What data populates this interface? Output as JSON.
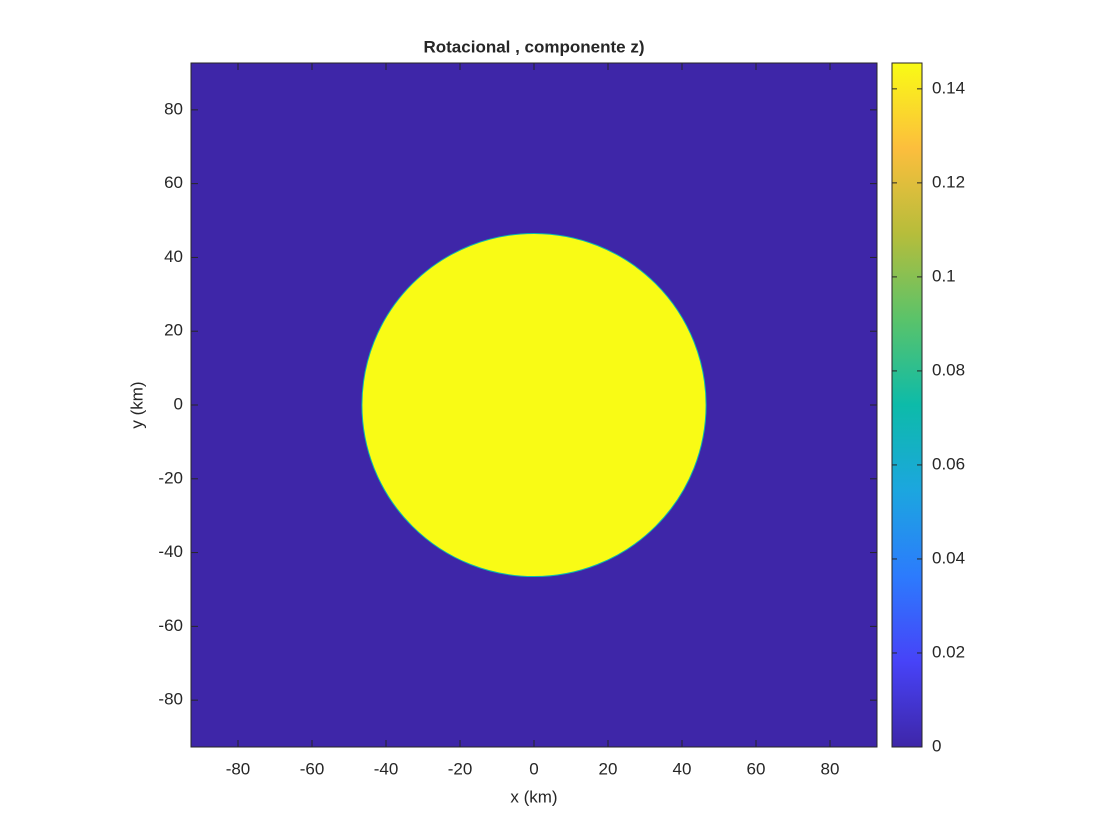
{
  "chart_data": {
    "type": "image",
    "title": "Rotacional , componente z)",
    "x_label": "x (km)",
    "y_label": "y (km)",
    "xlim": [
      -92.7,
      92.7
    ],
    "ylim": [
      -92.7,
      92.7
    ],
    "xticks": [
      -80,
      -60,
      -40,
      -20,
      0,
      20,
      40,
      60,
      80
    ],
    "yticks": [
      -80,
      -60,
      -40,
      -20,
      0,
      20,
      40,
      60,
      80
    ],
    "background_value": 0,
    "disc": {
      "center": [
        0,
        0
      ],
      "radius": 46.5,
      "value": 0.1455
    },
    "clim": [
      0,
      0.1455
    ],
    "cticks": [
      0,
      0.02,
      0.04,
      0.06,
      0.08,
      0.1,
      0.12,
      0.14
    ],
    "colormap": [
      "#3e26a8",
      "#4743f8",
      "#2c7bfd",
      "#1ca6df",
      "#0dbba9",
      "#5ac36a",
      "#b6bd3b",
      "#fcbe3d",
      "#f9fb15"
    ]
  }
}
